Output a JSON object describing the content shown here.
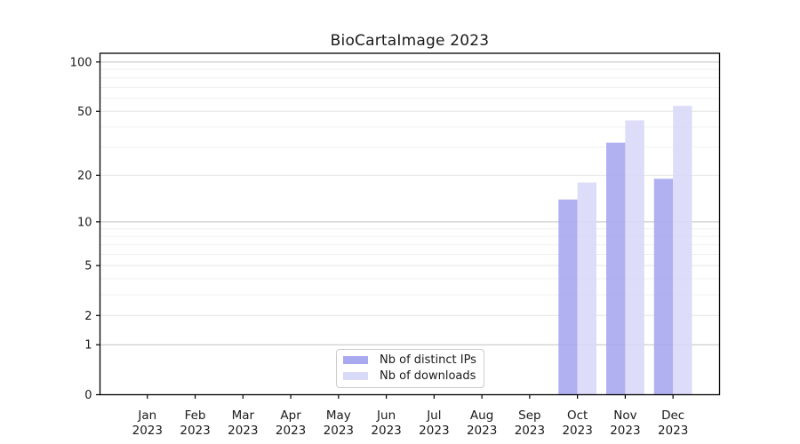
{
  "chart_data": {
    "type": "bar",
    "title": "BioCartaImage 2023",
    "categories": [
      "Jan",
      "Feb",
      "Mar",
      "Apr",
      "May",
      "Jun",
      "Jul",
      "Aug",
      "Sep",
      "Oct",
      "Nov",
      "Dec"
    ],
    "category_year": "2023",
    "series": [
      {
        "name": "Nb of distinct IPs",
        "color": "#a9a9f0",
        "values": [
          0,
          0,
          0,
          0,
          0,
          0,
          0,
          0,
          0,
          14,
          32,
          19
        ]
      },
      {
        "name": "Nb of downloads",
        "color": "#d9d9f8",
        "values": [
          0,
          0,
          0,
          0,
          0,
          0,
          0,
          0,
          0,
          18,
          44,
          54
        ]
      }
    ],
    "xlabel": "",
    "ylabel": "",
    "y_axis": {
      "scale": "log10(1+y)",
      "ticks": [
        0,
        1,
        2,
        5,
        10,
        20,
        50,
        100
      ],
      "major_gridlines": [
        1,
        10,
        100
      ],
      "mid_gridlines": [
        2,
        5,
        20,
        50
      ],
      "minor_gridlines": [
        3,
        4,
        6,
        7,
        8,
        9,
        30,
        40,
        60,
        70,
        80,
        90
      ],
      "ylim": [
        0,
        113
      ]
    },
    "legend": {
      "position": "inside-bottom-center"
    },
    "grid": "on"
  },
  "colors": {
    "background": "#ffffff",
    "bar_distinct_ips": "#a9a9f0",
    "bar_downloads": "#d9d9f8",
    "gridline_major": "#c2c2c2",
    "gridline_mid": "#e4e4e4",
    "gridline_minor": "#f0f0f0",
    "axis": "#000000",
    "text": "#1a1a1a"
  }
}
